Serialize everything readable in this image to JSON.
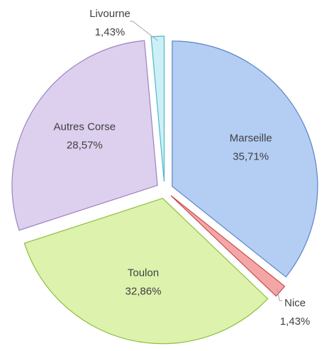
{
  "chart_data": {
    "type": "pie",
    "categories": [
      "Marseille",
      "Nice",
      "Toulon",
      "Autres Corse",
      "Livourne"
    ],
    "values": [
      35.71,
      1.43,
      32.86,
      28.57,
      1.43
    ],
    "value_labels": [
      "35,71%",
      "1,43%",
      "32,86%",
      "28,57%",
      "1,43%"
    ],
    "colors": [
      "#b4cdf3",
      "#f4a6a6",
      "#dcf2ad",
      "#dcd0ee",
      "#cdf0f6"
    ],
    "edge_colors": [
      "#5a85c8",
      "#c84a4a",
      "#8fbf3c",
      "#9a82c2",
      "#4cb8c8"
    ]
  }
}
